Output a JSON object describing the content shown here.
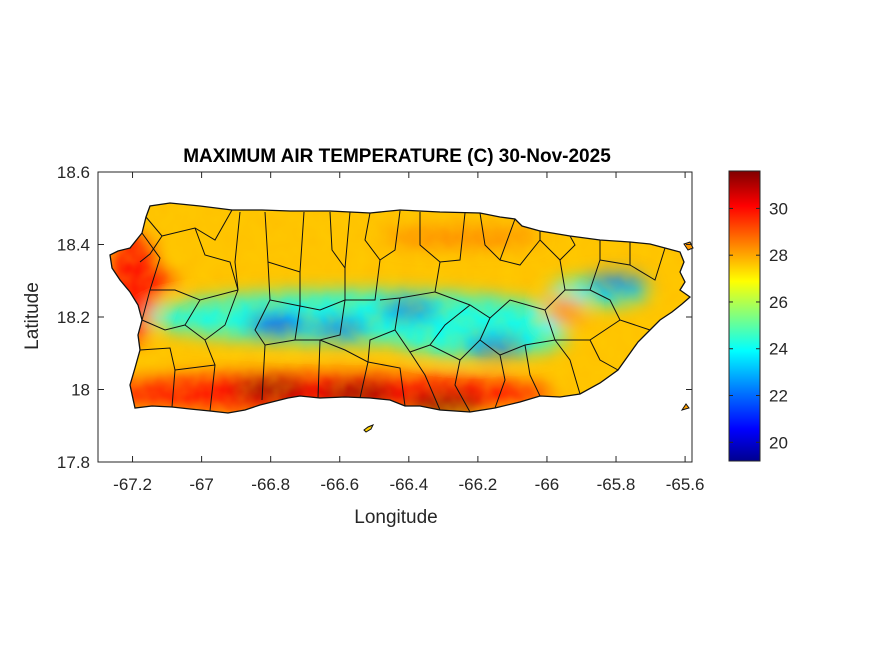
{
  "figure": {
    "title": "MAXIMUM AIR TEMPERATURE (C) 30-Nov-2025",
    "xlabel": "Longitude",
    "ylabel": "Latitude"
  },
  "map": {
    "region": "Puerto Rico",
    "projection": "lon-lat",
    "xlim": [
      -67.3,
      -65.58
    ],
    "ylim": [
      17.8,
      18.6
    ],
    "x_ticks": [
      -67.2,
      -67,
      -66.8,
      -66.6,
      -66.4,
      -66.2,
      -66,
      -65.8,
      -65.6
    ],
    "x_tick_labels": [
      "-67.2",
      "-67",
      "-66.8",
      "-66.6",
      "-66.4",
      "-66.2",
      "-66",
      "-65.8",
      "-65.6"
    ],
    "y_ticks": [
      17.8,
      18,
      18.2,
      18.4,
      18.6
    ],
    "y_tick_labels": [
      "17.8",
      "18",
      "18.2",
      "18.4",
      "18.6"
    ],
    "boundaries": "municipality outlines (black)",
    "field": "maximum air temperature, jet colormap",
    "cool_zones": [
      {
        "lon": -66.78,
        "lat": 18.18,
        "value": 21.5
      },
      {
        "lon": -66.6,
        "lat": 18.17,
        "value": 21.8
      },
      {
        "lon": -66.4,
        "lat": 18.22,
        "value": 22.5
      },
      {
        "lon": -66.15,
        "lat": 18.12,
        "value": 23.0
      },
      {
        "lon": -65.8,
        "lat": 18.29,
        "value": 22.0
      }
    ],
    "warm_zones": [
      {
        "lon": -66.8,
        "lat": 18.0,
        "value": 31.5
      },
      {
        "lon": -66.55,
        "lat": 17.99,
        "value": 31.5
      },
      {
        "lon": -67.18,
        "lat": 18.3,
        "value": 30.5
      },
      {
        "lon": -66.3,
        "lat": 17.96,
        "value": 31.0
      }
    ]
  },
  "colorbar": {
    "colormap": "jet",
    "range": [
      19.2,
      31.6
    ],
    "ticks": [
      20,
      22,
      24,
      26,
      28,
      30
    ],
    "tick_labels": [
      "20",
      "22",
      "24",
      "26",
      "28",
      "30"
    ],
    "colors": [
      "#00008f",
      "#0000ff",
      "#0080ff",
      "#00ffff",
      "#80ff80",
      "#ffff00",
      "#ff8000",
      "#ff0000",
      "#800000"
    ]
  }
}
